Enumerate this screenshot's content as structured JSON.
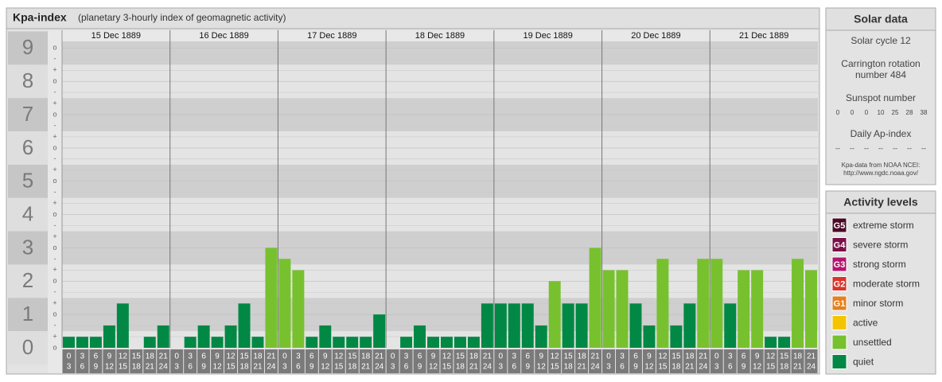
{
  "chart_data": {
    "type": "bar",
    "title": "Kpa-index",
    "subtitle": "(planetary 3-hourly index of geomagnetic activity)",
    "ylim": [
      0,
      9.2
    ],
    "yticks": [
      0,
      1,
      2,
      3,
      4,
      5,
      6,
      7,
      8,
      9
    ],
    "minor_labels": [
      "-",
      "o",
      "+"
    ],
    "hours": [
      0,
      3,
      6,
      9,
      12,
      15,
      18,
      21,
      24
    ],
    "grid": true,
    "series": [
      {
        "name": "15 Dec 1889",
        "values": [
          0.33,
          0.33,
          0.33,
          0.67,
          1.33,
          0,
          0.33,
          0.67
        ],
        "colors": [
          "#008844",
          "#008844",
          "#008844",
          "#008844",
          "#008844",
          "#008844",
          "#008844",
          "#008844"
        ]
      },
      {
        "name": "16 Dec 1889",
        "values": [
          0,
          0.33,
          0.67,
          0.33,
          0.67,
          1.33,
          0.33,
          3
        ],
        "colors": [
          "#008844",
          "#008844",
          "#008844",
          "#008844",
          "#008844",
          "#008844",
          "#008844",
          "#77c12e"
        ]
      },
      {
        "name": "17 Dec 1889",
        "values": [
          2.67,
          2.33,
          0.33,
          0.67,
          0.33,
          0.33,
          0.33,
          1
        ],
        "colors": [
          "#77c12e",
          "#77c12e",
          "#008844",
          "#008844",
          "#008844",
          "#008844",
          "#008844",
          "#008844"
        ]
      },
      {
        "name": "18 Dec 1889",
        "values": [
          0,
          0.33,
          0.67,
          0.33,
          0.33,
          0.33,
          0.33,
          1.33
        ],
        "colors": [
          "#008844",
          "#008844",
          "#008844",
          "#008844",
          "#008844",
          "#008844",
          "#008844",
          "#008844"
        ]
      },
      {
        "name": "19 Dec 1889",
        "values": [
          1.33,
          1.33,
          1.33,
          0.67,
          2,
          1.33,
          1.33,
          3
        ],
        "colors": [
          "#008844",
          "#008844",
          "#008844",
          "#008844",
          "#77c12e",
          "#008844",
          "#008844",
          "#77c12e"
        ]
      },
      {
        "name": "20 Dec 1889",
        "values": [
          2.33,
          2.33,
          1.33,
          0.67,
          2.67,
          0.67,
          1.33,
          2.67
        ],
        "colors": [
          "#77c12e",
          "#77c12e",
          "#008844",
          "#008844",
          "#77c12e",
          "#008844",
          "#008844",
          "#77c12e"
        ]
      },
      {
        "name": "21 Dec 1889",
        "values": [
          2.67,
          1.33,
          2.33,
          2.33,
          0.33,
          0.33,
          2.67,
          2.33
        ],
        "colors": [
          "#77c12e",
          "#008844",
          "#77c12e",
          "#77c12e",
          "#008844",
          "#008844",
          "#77c12e",
          "#77c12e"
        ]
      }
    ]
  },
  "solar_data": {
    "title": "Solar data",
    "cycle": "Solar cycle 12",
    "carrington": [
      "Carrington rotation",
      "number 484"
    ],
    "sunspot_title": "Sunspot number",
    "sunspot_values": [
      0,
      0,
      0,
      10,
      25,
      28,
      38
    ],
    "ap_title": "Daily Ap-index",
    "ap_values": [
      "--",
      "--",
      "--",
      "--",
      "--",
      "--",
      "--"
    ],
    "source": [
      "Kpa-data from NOAA NCEI:",
      "http://www.ngdc.noaa.gov/"
    ]
  },
  "activity_levels": {
    "title": "Activity levels",
    "items": [
      {
        "code": "G5",
        "label": "extreme storm",
        "color": "#4a0a26"
      },
      {
        "code": "G4",
        "label": "severe storm",
        "color": "#7b0f48"
      },
      {
        "code": "G3",
        "label": "strong storm",
        "color": "#b3156e"
      },
      {
        "code": "G2",
        "label": "moderate storm",
        "color": "#d8352b"
      },
      {
        "code": "G1",
        "label": "minor storm",
        "color": "#e5801e"
      },
      {
        "label": "active",
        "color": "#f5c400"
      },
      {
        "label": "unsettled",
        "color": "#77c12e"
      },
      {
        "label": "quiet",
        "color": "#008844"
      }
    ]
  }
}
